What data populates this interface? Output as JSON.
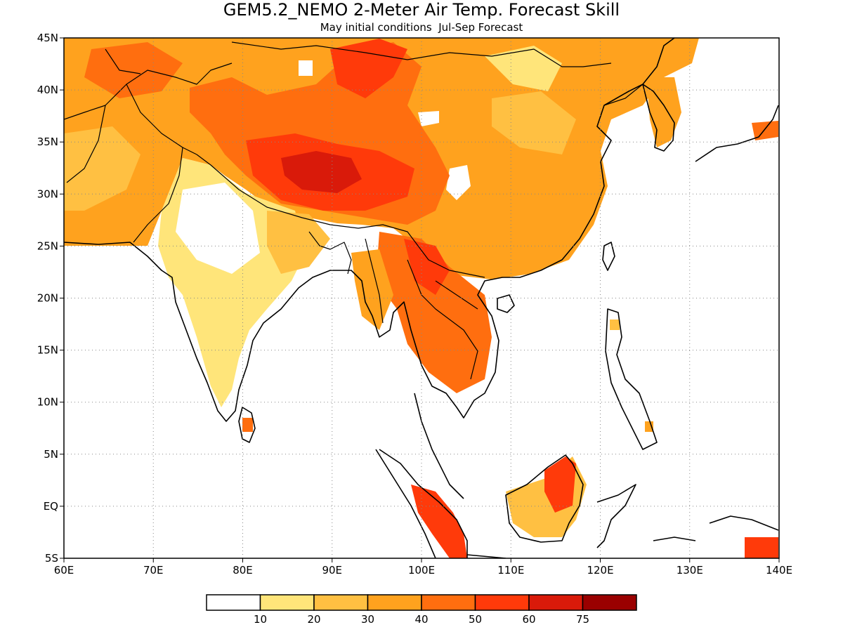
{
  "title": "GEM5.2_NEMO 2-Meter Air Temp. Forecast Skill",
  "subtitle": "May initial conditions  Jul-Sep Forecast",
  "map": {
    "lon_range": [
      60,
      140
    ],
    "lat_range": [
      -5,
      45
    ],
    "grid": "dotted",
    "x_ticks": [
      "60E",
      "70E",
      "80E",
      "90E",
      "100E",
      "110E",
      "120E",
      "130E",
      "140E"
    ],
    "y_ticks": [
      "45N",
      "40N",
      "35N",
      "30N",
      "25N",
      "20N",
      "15N",
      "10N",
      "5N",
      "EQ",
      "5S"
    ]
  },
  "colorbar": {
    "labels": [
      "10",
      "20",
      "30",
      "40",
      "50",
      "60",
      "75"
    ],
    "colors": [
      "#ffffff",
      "#ffe57a",
      "#ffc042",
      "#ffa21e",
      "#ff6e0f",
      "#ff3a0a",
      "#d91a0a",
      "#9a0000"
    ]
  }
}
